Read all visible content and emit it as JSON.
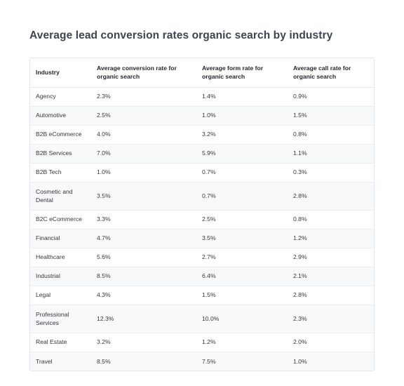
{
  "title": "Average lead conversion rates organic search by industry",
  "columns": [
    "Industry",
    "Average conversion rate for organic search",
    "Average form rate for organic search",
    "Average call rate for organic search"
  ],
  "rows": [
    [
      "Agency",
      "2.3%",
      "1.4%",
      "0.9%"
    ],
    [
      "Automotive",
      "2.5%",
      "1.0%",
      "1.5%"
    ],
    [
      "B2B eCommerce",
      "4.0%",
      "3.2%",
      "0.8%"
    ],
    [
      "B2B Services",
      "7.0%",
      "5.9%",
      "1.1%"
    ],
    [
      "B2B Tech",
      "1.0%",
      "0.7%",
      "0.3%"
    ],
    [
      "Cosmetic and Dental",
      "3.5%",
      "0.7%",
      "2.8%"
    ],
    [
      "B2C eCommerce",
      "3.3%",
      "2.5%",
      "0.8%"
    ],
    [
      "Financial",
      "4.7%",
      "3.5%",
      "1.2%"
    ],
    [
      "Healthcare",
      "5.6%",
      "2.7%",
      "2.9%"
    ],
    [
      "Industrial",
      "8.5%",
      "6.4%",
      "2.1%"
    ],
    [
      "Legal",
      "4.3%",
      "1.5%",
      "2.8%"
    ],
    [
      "Professional Services",
      "12.3%",
      "10.0%",
      "2.3%"
    ],
    [
      "Real Estate",
      "3.2%",
      "1.2%",
      "2.0%"
    ],
    [
      "Travel",
      "8.5%",
      "7.5%",
      "1.0%"
    ]
  ]
}
